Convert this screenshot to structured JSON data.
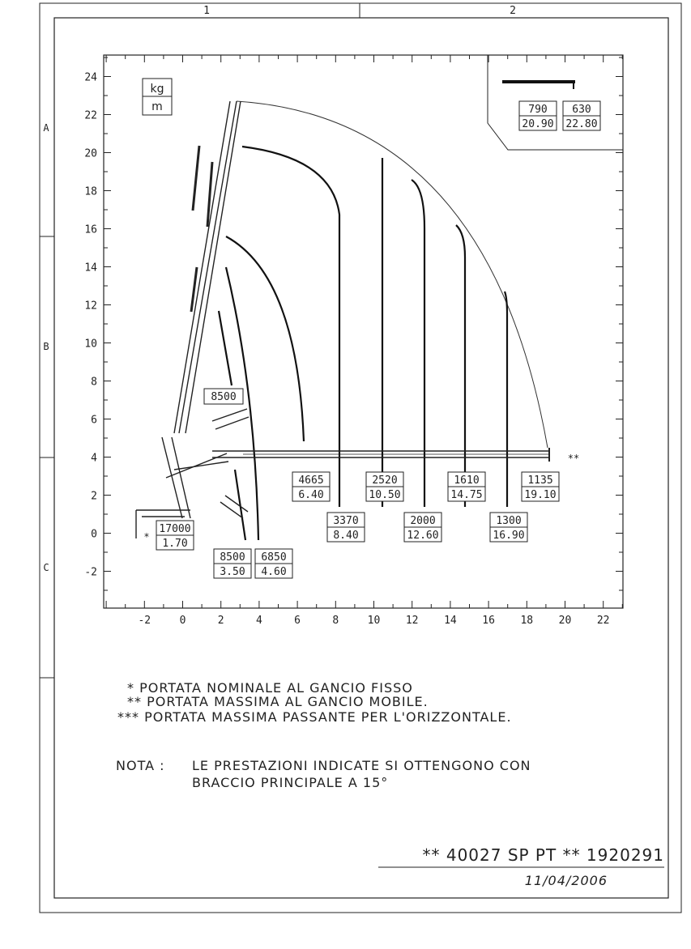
{
  "frame": {
    "columns": [
      "1",
      "2"
    ],
    "rows": [
      "A",
      "B",
      "C"
    ]
  },
  "units_box": {
    "top": "kg",
    "bottom": "m"
  },
  "axes": {
    "x_ticks": [
      "-2",
      "0",
      "2",
      "4",
      "6",
      "8",
      "10",
      "12",
      "14",
      "16",
      "18",
      "20",
      "22"
    ],
    "y_ticks": [
      "24",
      "22",
      "20",
      "18",
      "16",
      "14",
      "12",
      "10",
      "8",
      "6",
      "4",
      "2",
      "0",
      "-2"
    ],
    "x_range": [
      -3,
      23
    ],
    "y_range": [
      -3.8,
      24.8
    ]
  },
  "boom_tip_label": {
    "load": "8500"
  },
  "load_labels": [
    {
      "load": "17000",
      "reach": "1.70"
    },
    {
      "load": "8500",
      "reach": "3.50"
    },
    {
      "load": "6850",
      "reach": "4.60"
    },
    {
      "load": "4665",
      "reach": "6.40"
    },
    {
      "load": "3370",
      "reach": "8.40"
    },
    {
      "load": "2520",
      "reach": "10.50"
    },
    {
      "load": "2000",
      "reach": "12.60"
    },
    {
      "load": "1610",
      "reach": "14.75"
    },
    {
      "load": "1300",
      "reach": "16.90"
    },
    {
      "load": "1135",
      "reach": "19.10"
    }
  ],
  "inset_labels": [
    {
      "load": "790",
      "reach": "20.90"
    },
    {
      "load": "630",
      "reach": "22.80"
    }
  ],
  "markers": {
    "single": "*",
    "double": "**"
  },
  "legend": [
    "* PORTATA NOMINALE AL GANCIO FISSO",
    "** PORTATA MASSIMA AL GANCIO MOBILE.",
    "*** PORTATA MASSIMA PASSANTE PER L'ORIZZONTALE."
  ],
  "note": {
    "label": "NOTA :",
    "line1": "LE PRESTAZIONI INDICATE SI OTTENGONO CON",
    "line2": "BRACCIO PRINCIPALE A 15°"
  },
  "code": "** 40027 SP PT ** 1920291",
  "date": "11/04/2006",
  "chart_data": {
    "type": "diagram",
    "envelope_top_y": 22.5,
    "curves": [
      {
        "x_end": 6.4,
        "top_y": 20.0
      },
      {
        "x_end": 8.4,
        "top_y": 20.0
      },
      {
        "x_end": 10.5,
        "top_y": 20.0
      },
      {
        "x_end": 12.6,
        "top_y": 18.4
      },
      {
        "x_end": 14.75,
        "top_y": 16.1
      },
      {
        "x_end": 16.9,
        "top_y": 12.6
      },
      {
        "x_end": 19.1,
        "top_y": 4.2
      }
    ]
  }
}
